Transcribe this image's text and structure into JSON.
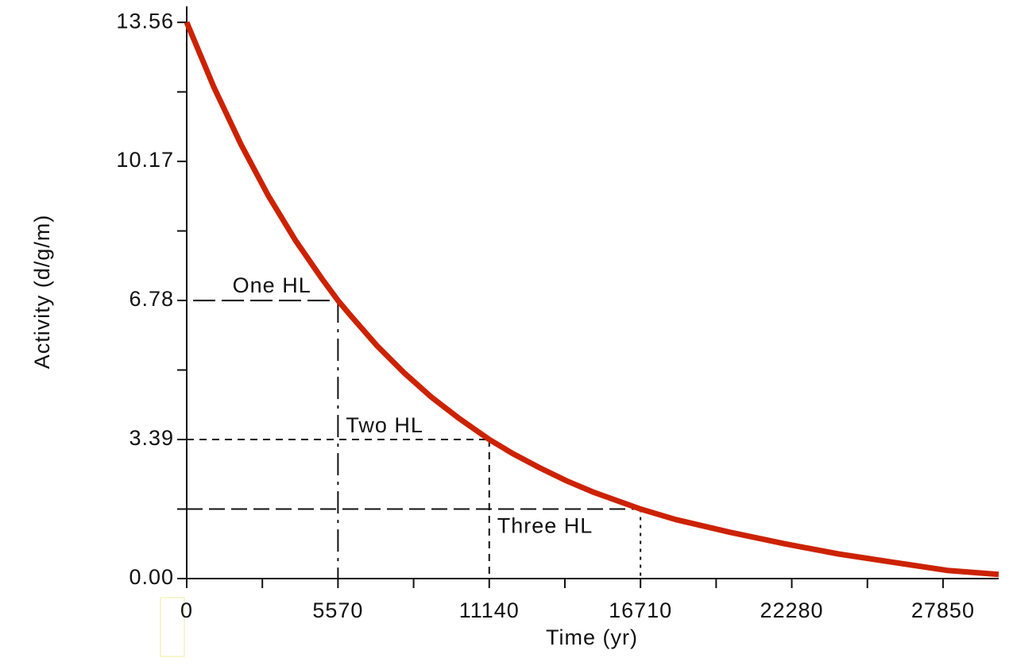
{
  "chart_data": {
    "type": "line",
    "x_label": "Time (yr)",
    "y_label": "Activity (d/g/m)",
    "x": [
      0,
      1000,
      2000,
      3000,
      4000,
      5000,
      5570,
      6000,
      7000,
      8000,
      9000,
      10000,
      11140,
      12000,
      13000,
      14000,
      15000,
      16710,
      18000,
      20000,
      22000,
      24000,
      26000,
      28000,
      29900
    ],
    "series": [
      {
        "color": "#cc2200",
        "values": [
          13.56,
          11.98,
          10.58,
          9.34,
          8.25,
          7.29,
          6.78,
          6.44,
          5.68,
          5.02,
          4.43,
          3.92,
          3.39,
          3.05,
          2.7,
          2.38,
          2.1,
          1.695,
          1.44,
          1.13,
          0.85,
          0.6,
          0.4,
          0.2,
          0.1
        ]
      }
    ],
    "xlim": [
      0,
      29900
    ],
    "ylim": [
      0,
      13.95
    ],
    "xticks": [
      0,
      5570,
      11140,
      16710,
      22280,
      27850
    ],
    "xminorticks": [
      2785,
      8355,
      13925,
      19495,
      25065
    ],
    "yticks": [
      {
        "value": 0,
        "label": "0.00"
      },
      3.39,
      6.78,
      10.17,
      13.56
    ],
    "yminorticks": [
      1.695,
      5.085,
      8.475,
      11.865
    ],
    "half_lives": [
      {
        "label": "One HL",
        "x": 5570,
        "y": 6.78
      },
      {
        "label": "Two HL",
        "x": 11140,
        "y": 3.39
      },
      {
        "label": "Three HL",
        "x": 16710,
        "y": 1.695
      }
    ]
  }
}
